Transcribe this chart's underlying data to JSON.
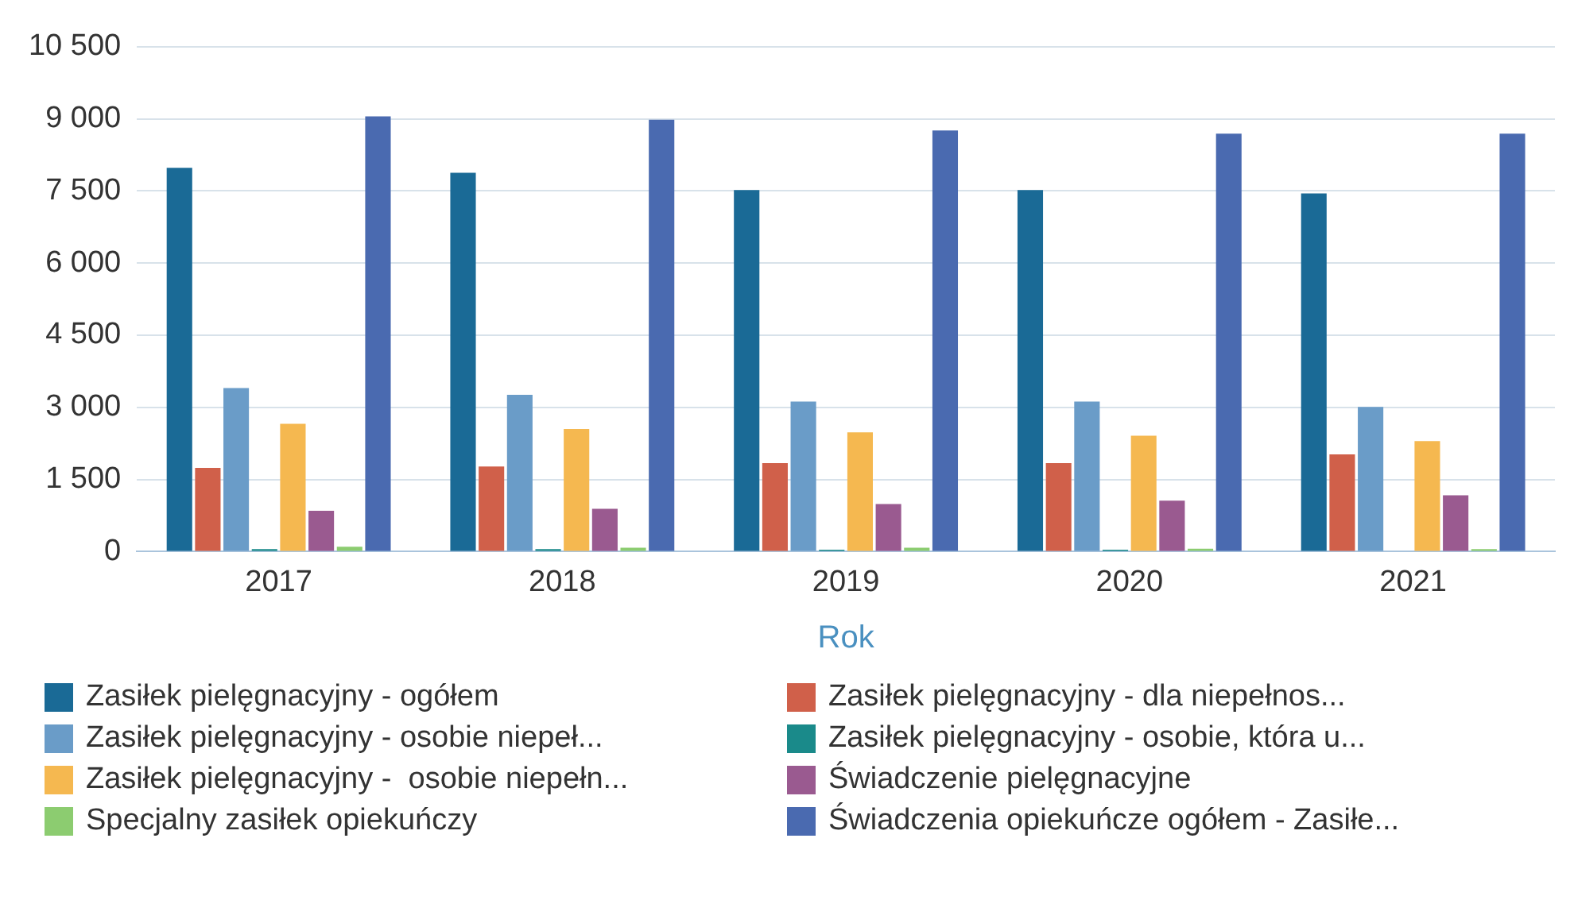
{
  "chart_data": {
    "type": "bar",
    "xlabel": "Rok",
    "categories": [
      "2017",
      "2018",
      "2019",
      "2020",
      "2021"
    ],
    "series": [
      {
        "name": "Zasiłek pielęgnacyjny - ogółem",
        "color": "#1a6a96",
        "values": [
          7980,
          7880,
          7520,
          7520,
          7450
        ]
      },
      {
        "name": "Zasiłek pielęgnacyjny - dla niepełnos...",
        "color": "#d0604a",
        "values": [
          1740,
          1770,
          1840,
          1840,
          2020
        ]
      },
      {
        "name": "Zasiłek pielęgnacyjny - osobie niepeł...",
        "color": "#6a9cc8",
        "values": [
          3400,
          3260,
          3120,
          3120,
          3010
        ]
      },
      {
        "name": "Zasiłek pielęgnacyjny - osobie, która u...",
        "color": "#1a8a8a",
        "values": [
          50,
          50,
          40,
          40,
          null
        ]
      },
      {
        "name": "Zasiłek pielęgnacyjny -  osobie niepełn...",
        "color": "#f5b850",
        "values": [
          2660,
          2550,
          2480,
          2410,
          2300
        ]
      },
      {
        "name": "Świadczenie pielęgnacyjne",
        "color": "#9a5a90",
        "values": [
          850,
          890,
          990,
          1060,
          1170
        ]
      },
      {
        "name": "Specjalny zasiłek opiekuńczy",
        "color": "#8ccc70",
        "values": [
          100,
          80,
          80,
          60,
          50
        ]
      },
      {
        "name": "Świadczenia opiekuńcze ogółem - Zasiłe...",
        "color": "#4a6ab0",
        "values": [
          9050,
          8980,
          8760,
          8690,
          8690
        ]
      }
    ],
    "ylim": [
      0,
      10500
    ],
    "yticks": [
      0,
      {
        "value": 1500,
        "label": "1 500"
      },
      {
        "value": 3000,
        "label": "3 000"
      },
      {
        "value": 4500,
        "label": "4 500"
      },
      {
        "value": 6000,
        "label": "6 000"
      },
      {
        "value": 7500,
        "label": "7 500"
      },
      {
        "value": 9000,
        "label": "9 000"
      },
      {
        "value": 10500,
        "label": "10 500"
      }
    ],
    "grid": "y",
    "legend": "bottom"
  }
}
